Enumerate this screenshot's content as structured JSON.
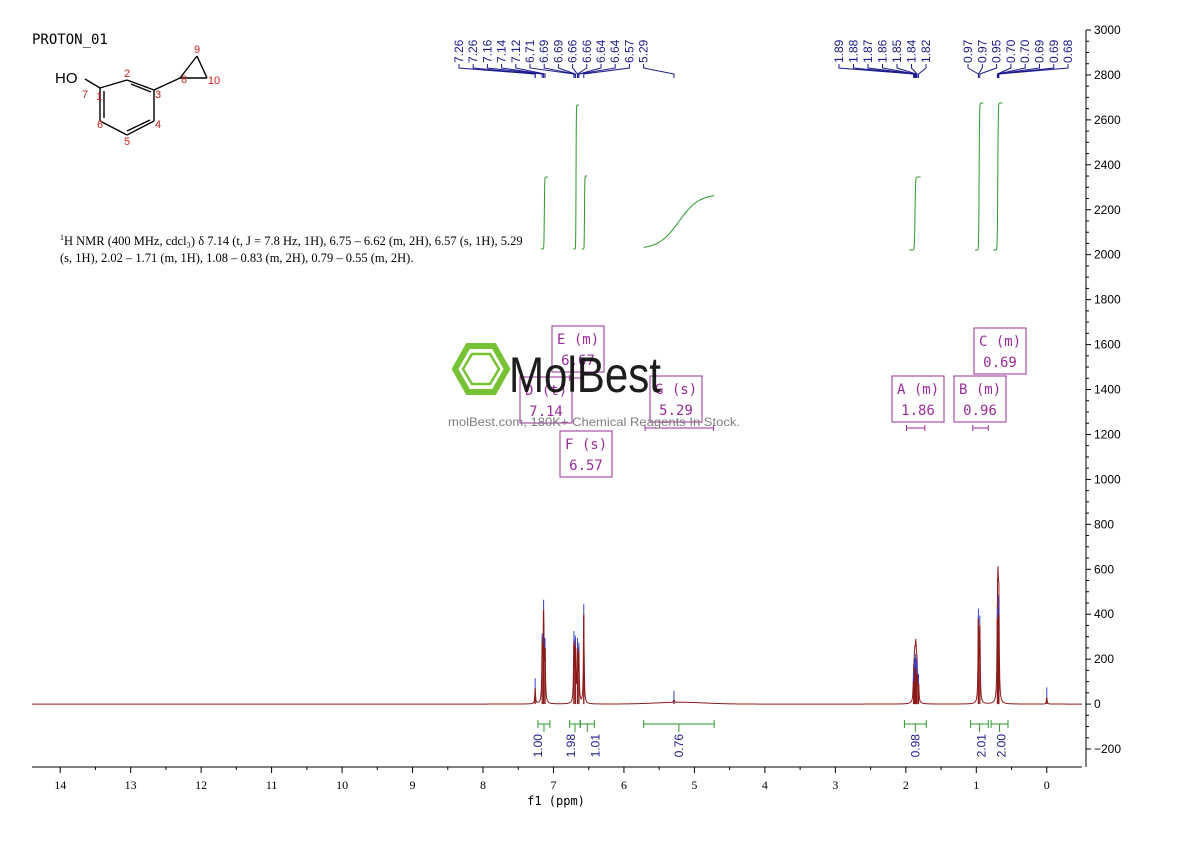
{
  "chart_data": {
    "type": "nmr_spectrum",
    "title": "PROTON_01",
    "xlabel": "f1 (ppm)",
    "xlim": [
      14.4,
      -0.5
    ],
    "ylim": [
      -280,
      3000
    ],
    "x_ticks": [
      14,
      13,
      12,
      11,
      10,
      9,
      8,
      7,
      6,
      5,
      4,
      3,
      2,
      1,
      0
    ],
    "y_ticks": [
      -200,
      0,
      200,
      400,
      600,
      800,
      1000,
      1200,
      1400,
      1600,
      1800,
      2000,
      2200,
      2400,
      2600,
      2800,
      3000
    ],
    "peaks": [
      {
        "ppm": 7.26,
        "height": 70
      },
      {
        "ppm": 7.16,
        "height": 270
      },
      {
        "ppm": 7.14,
        "height": 420
      },
      {
        "ppm": 7.12,
        "height": 250
      },
      {
        "ppm": 6.71,
        "height": 280
      },
      {
        "ppm": 6.69,
        "height": 260
      },
      {
        "ppm": 6.66,
        "height": 250
      },
      {
        "ppm": 6.64,
        "height": 230
      },
      {
        "ppm": 6.57,
        "height": 400
      },
      {
        "ppm": 5.29,
        "height": 15
      },
      {
        "ppm": 1.89,
        "height": 100
      },
      {
        "ppm": 1.88,
        "height": 140
      },
      {
        "ppm": 1.87,
        "height": 160
      },
      {
        "ppm": 1.86,
        "height": 180
      },
      {
        "ppm": 1.85,
        "height": 160
      },
      {
        "ppm": 1.84,
        "height": 130
      },
      {
        "ppm": 1.82,
        "height": 90
      },
      {
        "ppm": 0.97,
        "height": 380
      },
      {
        "ppm": 0.95,
        "height": 350
      },
      {
        "ppm": 0.7,
        "height": 380
      },
      {
        "ppm": 0.69,
        "height": 440
      },
      {
        "ppm": 0.68,
        "height": 400
      },
      {
        "ppm": 0.0,
        "height": 30
      }
    ],
    "peak_labels_left": [
      "7.26",
      "7.26",
      "7.16",
      "7.14",
      "7.12",
      "6.71",
      "6.69",
      "6.69",
      "6.66",
      "6.66",
      "6.64",
      "6.64",
      "6.57",
      "5.29"
    ],
    "peak_labels_mid": [
      "1.89",
      "1.88",
      "1.87",
      "1.86",
      "1.85",
      "1.84",
      "1.82"
    ],
    "peak_labels_right": [
      "0.97",
      "0.97",
      "0.95",
      "0.70",
      "0.70",
      "0.69",
      "0.69",
      "0.68"
    ],
    "integrals": [
      {
        "from": 7.22,
        "to": 7.05,
        "value": "1.00"
      },
      {
        "from": 6.77,
        "to": 6.62,
        "value": "1.98"
      },
      {
        "from": 6.62,
        "to": 6.42,
        "value": "1.01"
      },
      {
        "from": 5.72,
        "to": 4.72,
        "value": "0.76"
      },
      {
        "from": 2.02,
        "to": 1.71,
        "value": "0.98"
      },
      {
        "from": 1.08,
        "to": 0.83,
        "value": "2.01"
      },
      {
        "from": 0.79,
        "to": 0.55,
        "value": "2.00"
      }
    ],
    "multiplets": [
      {
        "letter": "A",
        "mult": "m",
        "shift": "1.86"
      },
      {
        "letter": "B",
        "mult": "m",
        "shift": "0.96"
      },
      {
        "letter": "C",
        "mult": "m",
        "shift": "0.69"
      },
      {
        "letter": "D",
        "mult": "t",
        "shift": "7.14"
      },
      {
        "letter": "E",
        "mult": "m",
        "shift": "6.67"
      },
      {
        "letter": "F",
        "mult": "s",
        "shift": "6.57"
      },
      {
        "letter": "G",
        "mult": "s",
        "shift": "5.29"
      }
    ],
    "description": {
      "line1": "H NMR (400 MHz, cdcl₃) δ 7.14 (t, J = 7.8 Hz, 1H), 6.75 – 6.62 (m, 2H), 6.57 (s, 1H), 5.29",
      "line2": "(s, 1H), 2.02 – 1.71 (m, 1H), 1.08 – 0.83 (m, 2H), 0.79 – 0.55 (m, 2H).",
      "sup": "1"
    },
    "molecule": {
      "substituent": "HO",
      "atom_numbers": [
        "1",
        "2",
        "3",
        "4",
        "5",
        "6",
        "7",
        "8",
        "9",
        "10"
      ]
    },
    "watermark": {
      "brand": "MolBest",
      "tagline": "molBest.com, 180K+ Chemical Reagents In Stock."
    },
    "colors": {
      "spectrum": "#8b1a1a",
      "peak_label": "#1a1a8c",
      "integral": "#2e9a2e",
      "multiplet": "#9b2c9b",
      "atom_number": "#cc2222",
      "watermark": "#6fbf2a"
    }
  }
}
